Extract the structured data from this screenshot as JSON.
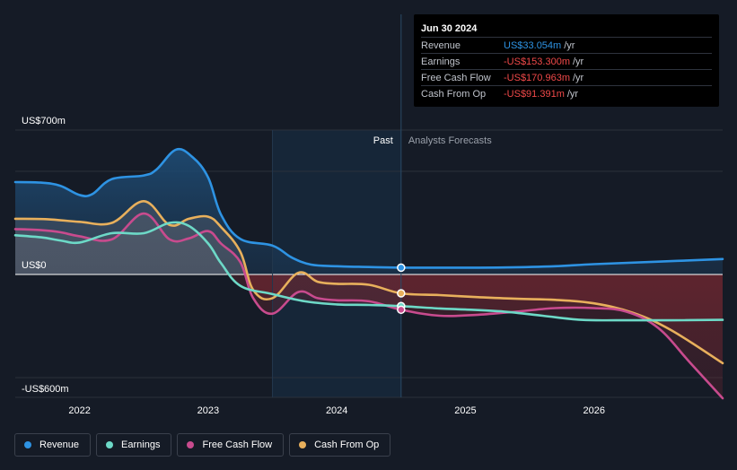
{
  "chart_data": {
    "type": "line",
    "currency_prefix": "US$",
    "y_unit": "m",
    "ylim": [
      -600,
      700
    ],
    "xlim": [
      2021.5,
      2027.0
    ],
    "x_ticks": [
      2022,
      2023,
      2024,
      2025,
      2026
    ],
    "x_tick_labels": [
      "2022",
      "2023",
      "2024",
      "2025",
      "2026"
    ],
    "y_labels": [
      {
        "value": 700,
        "text": "US$700m"
      },
      {
        "value": 0,
        "text": "US$0"
      },
      {
        "value": -600,
        "text": "-US$600m"
      }
    ],
    "gridlines": [
      700,
      500,
      0,
      -500
    ],
    "past_region_start": 2023.5,
    "forecast_start": 2024.5,
    "region_labels": {
      "past": "Past",
      "forecast": "Analysts Forecasts"
    },
    "series": [
      {
        "name": "Revenue",
        "color": "#2e93e3",
        "points": [
          [
            2021.5,
            448
          ],
          [
            2021.7,
            445
          ],
          [
            2021.85,
            430
          ],
          [
            2022.0,
            385
          ],
          [
            2022.1,
            390
          ],
          [
            2022.25,
            462
          ],
          [
            2022.5,
            480
          ],
          [
            2022.6,
            510
          ],
          [
            2022.75,
            605
          ],
          [
            2022.88,
            568
          ],
          [
            2023.0,
            470
          ],
          [
            2023.1,
            290
          ],
          [
            2023.25,
            172
          ],
          [
            2023.5,
            140
          ],
          [
            2023.65,
            82
          ],
          [
            2023.8,
            48
          ],
          [
            2024.0,
            40
          ],
          [
            2024.25,
            36
          ],
          [
            2024.5,
            33.054
          ],
          [
            2024.9,
            33
          ],
          [
            2025.3,
            34
          ],
          [
            2025.7,
            40
          ],
          [
            2026.0,
            50
          ],
          [
            2026.5,
            62
          ],
          [
            2027.0,
            75
          ]
        ],
        "marker_at": 2024.5
      },
      {
        "name": "Earnings",
        "color": "#6dd9c7",
        "points": [
          [
            2021.5,
            190
          ],
          [
            2021.7,
            180
          ],
          [
            2021.85,
            165
          ],
          [
            2022.0,
            155
          ],
          [
            2022.25,
            200
          ],
          [
            2022.5,
            200
          ],
          [
            2022.7,
            250
          ],
          [
            2022.85,
            235
          ],
          [
            2023.0,
            150
          ],
          [
            2023.1,
            55
          ],
          [
            2023.25,
            -55
          ],
          [
            2023.5,
            -95
          ],
          [
            2023.75,
            -130
          ],
          [
            2024.0,
            -145
          ],
          [
            2024.25,
            -148
          ],
          [
            2024.5,
            -153.3
          ],
          [
            2024.8,
            -165
          ],
          [
            2025.0,
            -170
          ],
          [
            2025.3,
            -180
          ],
          [
            2025.6,
            -200
          ],
          [
            2025.9,
            -220
          ],
          [
            2026.2,
            -222
          ],
          [
            2026.6,
            -222
          ],
          [
            2027.0,
            -220
          ]
        ],
        "marker_at": 2024.5
      },
      {
        "name": "Free Cash Flow",
        "color": "#c84b8e",
        "points": [
          [
            2021.5,
            220
          ],
          [
            2021.7,
            215
          ],
          [
            2021.85,
            205
          ],
          [
            2022.0,
            185
          ],
          [
            2022.25,
            170
          ],
          [
            2022.5,
            295
          ],
          [
            2022.7,
            170
          ],
          [
            2022.85,
            175
          ],
          [
            2023.0,
            210
          ],
          [
            2023.1,
            150
          ],
          [
            2023.25,
            60
          ],
          [
            2023.35,
            -115
          ],
          [
            2023.5,
            -190
          ],
          [
            2023.7,
            -85
          ],
          [
            2023.85,
            -115
          ],
          [
            2024.0,
            -125
          ],
          [
            2024.25,
            -130
          ],
          [
            2024.5,
            -170.963
          ],
          [
            2024.8,
            -200
          ],
          [
            2025.1,
            -195
          ],
          [
            2025.4,
            -180
          ],
          [
            2025.7,
            -163
          ],
          [
            2026.0,
            -163
          ],
          [
            2026.25,
            -180
          ],
          [
            2026.5,
            -260
          ],
          [
            2026.75,
            -430
          ],
          [
            2027.0,
            -600
          ]
        ],
        "marker_at": 2024.5
      },
      {
        "name": "Cash From Op",
        "color": "#e8b05c",
        "points": [
          [
            2021.5,
            270
          ],
          [
            2021.75,
            268
          ],
          [
            2022.0,
            255
          ],
          [
            2022.25,
            250
          ],
          [
            2022.5,
            355
          ],
          [
            2022.7,
            240
          ],
          [
            2022.85,
            270
          ],
          [
            2023.0,
            280
          ],
          [
            2023.1,
            230
          ],
          [
            2023.25,
            110
          ],
          [
            2023.35,
            -75
          ],
          [
            2023.5,
            -115
          ],
          [
            2023.7,
            8
          ],
          [
            2023.85,
            -35
          ],
          [
            2024.0,
            -45
          ],
          [
            2024.25,
            -50
          ],
          [
            2024.5,
            -91.391
          ],
          [
            2024.8,
            -100
          ],
          [
            2025.1,
            -110
          ],
          [
            2025.4,
            -118
          ],
          [
            2025.7,
            -123
          ],
          [
            2026.0,
            -140
          ],
          [
            2026.3,
            -185
          ],
          [
            2026.6,
            -270
          ],
          [
            2027.0,
            -430
          ]
        ],
        "marker_at": 2024.5
      }
    ],
    "legend_items": [
      "Revenue",
      "Earnings",
      "Free Cash Flow",
      "Cash From Op"
    ]
  },
  "tooltip": {
    "date": "Jun 30 2024",
    "unit": "/yr",
    "rows": [
      {
        "label": "Revenue",
        "value": "US$33.054m",
        "color": "#2e93e3"
      },
      {
        "label": "Earnings",
        "value": "-US$153.300m",
        "color": "#f04949"
      },
      {
        "label": "Free Cash Flow",
        "value": "-US$170.963m",
        "color": "#f04949"
      },
      {
        "label": "Cash From Op",
        "value": "-US$91.391m",
        "color": "#f04949"
      }
    ]
  },
  "legend": [
    {
      "label": "Revenue",
      "color": "#2e93e3"
    },
    {
      "label": "Earnings",
      "color": "#6dd9c7"
    },
    {
      "label": "Free Cash Flow",
      "color": "#c84b8e"
    },
    {
      "label": "Cash From Op",
      "color": "#e8b05c"
    }
  ]
}
